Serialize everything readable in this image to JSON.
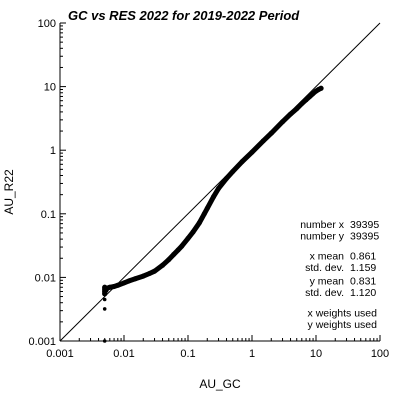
{
  "chart_data": {
    "type": "scatter",
    "title": "GC vs RES 2022 for 2019-2022 Period",
    "xlabel": "AU_GC",
    "ylabel": "AU_R22",
    "xscale": "log",
    "yscale": "log",
    "xlim": [
      0.001,
      100
    ],
    "ylim": [
      0.001,
      100
    ],
    "x_ticks": [
      "0.001",
      "0.01",
      "0.1",
      "1",
      "10",
      "100"
    ],
    "y_ticks": [
      "0.001",
      "0.01",
      "0.1",
      "1",
      "10",
      "100"
    ],
    "grid": false,
    "reference_line": "y = x",
    "series": [
      {
        "values_xy": [
          [
            0.005,
            0.001
          ],
          [
            0.005,
            0.0032
          ],
          [
            0.005,
            0.0045
          ],
          [
            0.005,
            0.0055
          ],
          [
            0.005,
            0.006
          ],
          [
            0.005,
            0.0065
          ],
          [
            0.005,
            0.007
          ],
          [
            0.0052,
            0.0062
          ],
          [
            0.0055,
            0.0068
          ],
          [
            0.006,
            0.007
          ],
          [
            0.007,
            0.0072
          ],
          [
            0.008,
            0.0075
          ],
          [
            0.01,
            0.0082
          ],
          [
            0.012,
            0.0088
          ],
          [
            0.015,
            0.0095
          ],
          [
            0.02,
            0.0105
          ],
          [
            0.025,
            0.0115
          ],
          [
            0.03,
            0.0125
          ],
          [
            0.04,
            0.0155
          ],
          [
            0.05,
            0.019
          ],
          [
            0.06,
            0.023
          ],
          [
            0.07,
            0.027
          ],
          [
            0.08,
            0.031
          ],
          [
            0.1,
            0.041
          ],
          [
            0.12,
            0.052
          ],
          [
            0.15,
            0.072
          ],
          [
            0.18,
            0.1
          ],
          [
            0.2,
            0.122
          ],
          [
            0.25,
            0.185
          ],
          [
            0.3,
            0.25
          ],
          [
            0.4,
            0.36
          ],
          [
            0.5,
            0.46
          ],
          [
            0.7,
            0.66
          ],
          [
            1,
            0.93
          ],
          [
            1.5,
            1.4
          ],
          [
            2,
            1.85
          ],
          [
            3,
            2.8
          ],
          [
            4,
            3.7
          ],
          [
            5,
            4.5
          ],
          [
            6,
            5.4
          ],
          [
            7,
            6.2
          ],
          [
            8,
            7.0
          ],
          [
            9,
            7.8
          ],
          [
            10,
            8.5
          ],
          [
            11,
            9.0
          ],
          [
            12,
            9.4
          ]
        ]
      }
    ],
    "stats": [
      {
        "label": "number x",
        "value": "39395"
      },
      {
        "label": "number y",
        "value": "39395"
      },
      {
        "label": "x mean",
        "value": "0.861"
      },
      {
        "label": "std. dev.",
        "value": "1.159"
      },
      {
        "label": "y mean",
        "value": "0.831"
      },
      {
        "label": "std. dev.",
        "value": "1.120"
      }
    ],
    "notes": [
      "x weights used",
      "y weights used"
    ]
  }
}
